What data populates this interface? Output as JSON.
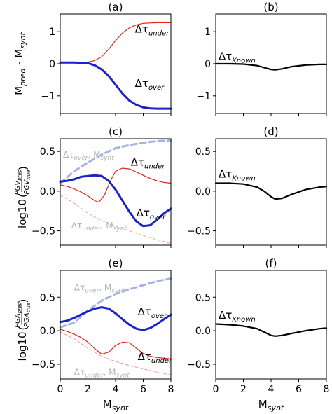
{
  "chart_data": [
    {
      "panel": "(a)",
      "type": "line",
      "ylabel_main": "M",
      "ylabel_sub1": "pred",
      "ylabel_mid": " - M",
      "ylabel_sub2": "synt",
      "xlim": [
        0,
        8
      ],
      "ylim": [
        -1.55,
        1.55
      ],
      "yticks": [
        "1",
        "0",
        "−1"
      ],
      "xticks": [],
      "series": [
        {
          "name": "Δτ under",
          "color": "#e0231c",
          "width": 1.2,
          "dash": "",
          "x": [
            0,
            1,
            2,
            2.5,
            3,
            3.5,
            4,
            4.5,
            5,
            5.5,
            6,
            6.5,
            7,
            8
          ],
          "y": [
            0.04,
            0.04,
            0.05,
            0.1,
            0.22,
            0.45,
            0.72,
            0.96,
            1.12,
            1.21,
            1.26,
            1.27,
            1.28,
            1.28
          ]
        },
        {
          "name": "Δτ over",
          "color": "#1a22c8",
          "width": 3,
          "dash": "",
          "x": [
            0,
            1,
            2,
            2.5,
            3,
            3.5,
            4,
            4.5,
            5,
            5.5,
            6,
            6.5,
            7,
            8
          ],
          "y": [
            0.04,
            0.04,
            0.02,
            -0.05,
            -0.18,
            -0.38,
            -0.65,
            -0.93,
            -1.15,
            -1.28,
            -1.36,
            -1.39,
            -1.4,
            -1.4
          ]
        }
      ],
      "annotations": [
        {
          "main": "Δτ",
          "sub": "under",
          "color": "#000000",
          "x": 5.4,
          "y": 0.97
        },
        {
          "main": "Δτ",
          "sub": "over",
          "color": "#000000",
          "x": 5.4,
          "y": -0.72
        }
      ]
    },
    {
      "panel": "(b)",
      "type": "line",
      "xlim": [
        0,
        8
      ],
      "ylim": [
        -1.55,
        1.55
      ],
      "yticks": [
        "1",
        "0",
        "−1"
      ],
      "xticks": [],
      "series": [
        {
          "name": "Δτ Known",
          "color": "#000000",
          "width": 2.2,
          "dash": "",
          "x": [
            0,
            1,
            2,
            3,
            3.5,
            4,
            4.3,
            4.8,
            5.5,
            6.5,
            7.5,
            8
          ],
          "y": [
            0.0,
            0.0,
            -0.01,
            -0.06,
            -0.12,
            -0.18,
            -0.19,
            -0.16,
            -0.09,
            -0.04,
            -0.02,
            -0.02
          ]
        }
      ],
      "annotations": [
        {
          "main": "Δτ",
          "sub": "Known",
          "color": "#000000",
          "x": 0.2,
          "y": 0.12
        }
      ]
    },
    {
      "panel": "(c)",
      "type": "line",
      "ylabel": "log10",
      "ylabel_num": "PGV",
      "ylabel_num_sub": "pred",
      "ylabel_den": "PGV",
      "ylabel_den_sub": "true",
      "xlim": [
        0,
        8
      ],
      "ylim": [
        -0.68,
        0.66
      ],
      "yticks": [
        "0.5",
        "0.0",
        "−0.5"
      ],
      "xticks": [],
      "series": [
        {
          "name": "Δτ over, M synt",
          "color": "#a7b3e6",
          "width": 3,
          "dash": "8,5",
          "x": [
            0,
            1,
            2,
            3,
            4,
            5,
            6,
            7,
            8
          ],
          "y": [
            0.1,
            0.25,
            0.36,
            0.46,
            0.54,
            0.58,
            0.61,
            0.63,
            0.64
          ]
        },
        {
          "name": "Δτ under, M synt",
          "color": "#f09a90",
          "width": 1,
          "dash": "4,3",
          "x": [
            0,
            1,
            2,
            3,
            4,
            5,
            6,
            7,
            8
          ],
          "y": [
            -0.05,
            -0.15,
            -0.28,
            -0.37,
            -0.44,
            -0.5,
            -0.56,
            -0.61,
            -0.66
          ]
        },
        {
          "name": "Δτ under",
          "color": "#e0231c",
          "width": 1.2,
          "dash": "",
          "x": [
            0,
            0.5,
            1,
            1.5,
            2,
            2.5,
            2.8,
            3.2,
            3.6,
            4,
            4.5,
            5,
            5.5,
            6,
            6.5,
            7,
            7.5,
            8
          ],
          "y": [
            0.08,
            0.06,
            0.03,
            -0.01,
            -0.06,
            -0.12,
            -0.14,
            -0.05,
            0.12,
            0.25,
            0.29,
            0.28,
            0.24,
            0.2,
            0.16,
            0.13,
            0.11,
            0.1
          ]
        },
        {
          "name": "Δτ over",
          "color": "#1a22c8",
          "width": 3,
          "dash": "",
          "x": [
            0,
            0.5,
            1,
            1.5,
            2,
            2.5,
            3,
            3.5,
            4,
            4.5,
            5,
            5.5,
            6,
            6.5,
            7,
            7.5,
            8
          ],
          "y": [
            0.12,
            0.13,
            0.15,
            0.18,
            0.19,
            0.2,
            0.19,
            0.13,
            0.02,
            -0.12,
            -0.26,
            -0.38,
            -0.44,
            -0.43,
            -0.36,
            -0.28,
            -0.22
          ]
        }
      ],
      "annotations": [
        {
          "main": "Δτ",
          "sub": "over",
          "mid": ", M",
          "sub2": "synt",
          "color": "#b4b4b4",
          "size": "sm",
          "x": 0.2,
          "y": 0.42
        },
        {
          "main": "Δτ",
          "sub": "under",
          "color": "#000000",
          "x": 5.1,
          "y": 0.32
        },
        {
          "main": "Δτ",
          "sub": "over",
          "color": "#000000",
          "x": 5.5,
          "y": -0.32
        },
        {
          "main": "Δτ",
          "sub": "under",
          "mid": ", M",
          "sub2": "synt",
          "color": "#b4b4b4",
          "size": "sm",
          "x": 0.8,
          "y": -0.47
        }
      ]
    },
    {
      "panel": "(d)",
      "type": "line",
      "xlim": [
        0,
        8
      ],
      "ylim": [
        -0.68,
        0.66
      ],
      "yticks": [
        "0.5",
        "0.0",
        "−0.5"
      ],
      "xticks": [],
      "series": [
        {
          "name": "Δτ Known",
          "color": "#000000",
          "width": 2.2,
          "dash": "",
          "x": [
            0,
            1,
            2,
            3,
            3.5,
            4,
            4.3,
            4.8,
            5.5,
            6.5,
            7.5,
            8
          ],
          "y": [
            0.1,
            0.1,
            0.09,
            0.05,
            0.0,
            -0.07,
            -0.1,
            -0.09,
            -0.04,
            0.02,
            0.05,
            0.06
          ]
        }
      ],
      "annotations": [
        {
          "main": "Δτ",
          "sub": "Known",
          "color": "#000000",
          "x": 0.2,
          "y": 0.17
        }
      ]
    },
    {
      "panel": "(e)",
      "type": "line",
      "ylabel": "log10",
      "ylabel_num": "PGA",
      "ylabel_num_sub": "pred",
      "ylabel_den": "PGA",
      "ylabel_den_sub": "true",
      "xlim": [
        0,
        8
      ],
      "ylim": [
        -0.72,
        0.9
      ],
      "yticks": [
        "0.5",
        "0.0",
        "−0.5"
      ],
      "xticks": [
        "0",
        "2",
        "4",
        "6",
        "8"
      ],
      "xlabel_main": "M",
      "xlabel_sub": "synt",
      "series": [
        {
          "name": "Δτ over, M synt",
          "color": "#a7b3e6",
          "width": 3,
          "dash": "8,5",
          "x": [
            0,
            1,
            2,
            3,
            4,
            5,
            6,
            7,
            8
          ],
          "y": [
            0.05,
            0.12,
            0.3,
            0.45,
            0.55,
            0.62,
            0.68,
            0.74,
            0.78
          ]
        },
        {
          "name": "Δτ under, M synt",
          "color": "#f09a90",
          "width": 1,
          "dash": "4,3",
          "x": [
            0,
            1,
            2,
            3,
            4,
            5,
            6,
            7,
            8
          ],
          "y": [
            -0.02,
            -0.12,
            -0.26,
            -0.38,
            -0.46,
            -0.52,
            -0.57,
            -0.62,
            -0.66
          ]
        },
        {
          "name": "Δτ under",
          "color": "#e0231c",
          "width": 1.2,
          "dash": "",
          "x": [
            0,
            0.5,
            1,
            1.5,
            2,
            2.5,
            3,
            3.5,
            4,
            4.5,
            5,
            5.5,
            6,
            6.5,
            7,
            7.5,
            8
          ],
          "y": [
            0.02,
            -0.01,
            -0.05,
            -0.1,
            -0.17,
            -0.27,
            -0.35,
            -0.32,
            -0.22,
            -0.17,
            -0.18,
            -0.26,
            -0.34,
            -0.38,
            -0.4,
            -0.41,
            -0.42
          ]
        },
        {
          "name": "Δτ over",
          "color": "#1a22c8",
          "width": 3,
          "dash": "",
          "x": [
            0,
            0.5,
            1,
            1.5,
            2,
            2.5,
            3,
            3.5,
            4,
            4.5,
            5,
            5.5,
            6,
            6.5,
            7,
            7.5,
            8
          ],
          "y": [
            0.13,
            0.15,
            0.19,
            0.24,
            0.29,
            0.33,
            0.35,
            0.33,
            0.26,
            0.17,
            0.09,
            0.03,
            0.01,
            0.04,
            0.1,
            0.17,
            0.24
          ]
        }
      ],
      "annotations": [
        {
          "main": "Δτ",
          "sub": "over",
          "mid": ", M",
          "sub2": "synt",
          "color": "#b4b4b4",
          "size": "sm",
          "x": 1.0,
          "y": 0.6
        },
        {
          "main": "Δτ",
          "sub": "over",
          "color": "#000000",
          "x": 5.6,
          "y": 0.23
        },
        {
          "main": "Δτ",
          "sub": "under",
          "color": "#000000",
          "x": 5.6,
          "y": -0.44
        },
        {
          "main": "Δτ",
          "sub": "under",
          "mid": ", M",
          "sub2": "synt",
          "color": "#b4b4b4",
          "size": "sm",
          "x": 1.0,
          "y": -0.66
        }
      ]
    },
    {
      "panel": "(f)",
      "type": "line",
      "xlim": [
        0,
        8
      ],
      "ylim": [
        -0.72,
        0.9
      ],
      "yticks": [
        "0.5",
        "0.0",
        "−0.5"
      ],
      "xticks": [
        "0",
        "2",
        "4",
        "6",
        "8"
      ],
      "xlabel_main": "M",
      "xlabel_sub": "synt",
      "series": [
        {
          "name": "Δτ Known",
          "color": "#000000",
          "width": 2.2,
          "dash": "",
          "x": [
            0,
            1,
            2,
            3,
            3.5,
            4,
            4.3,
            4.8,
            5.5,
            6.5,
            7.5,
            8
          ],
          "y": [
            0.1,
            0.09,
            0.07,
            0.03,
            -0.02,
            -0.07,
            -0.08,
            -0.07,
            -0.04,
            0.0,
            0.03,
            0.04
          ]
        }
      ],
      "annotations": [
        {
          "main": "Δτ",
          "sub": "Known",
          "color": "#000000",
          "x": 0.2,
          "y": 0.18
        }
      ]
    }
  ]
}
